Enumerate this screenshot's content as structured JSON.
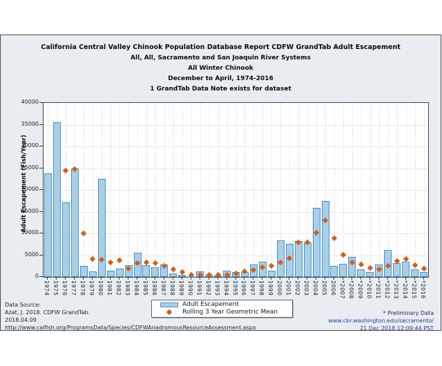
{
  "titles": {
    "line1": "California Central Valley Chinook Population Database Report CDFW GrandTab Adult Escapement",
    "line2": "All, All, Sacramento and San Joaquin River Systems",
    "line3": "All Winter Chinook",
    "line4": "December to April, 1974-2016",
    "line5": "1 GrandTab Data Note exists for dataset"
  },
  "chart_data": {
    "type": "bar",
    "title": "California Central Valley Chinook Population Database Report CDFW GrandTab Adult Escapement",
    "subtitle_lines": [
      "All, All, Sacramento and San Joaquin River Systems",
      "All Winter Chinook",
      "December to April, 1974-2016",
      "1 GrandTab Data Note exists for dataset"
    ],
    "xlabel": "",
    "ylabel": "Adult Escapement (Fish/Year)",
    "ylim": [
      0,
      40000
    ],
    "ytick_step": 5000,
    "grid": "dotted",
    "legend_position": "bottom-center",
    "categories": [
      "1974",
      "1975",
      "1976",
      "1977",
      "1978",
      "1979",
      "1980",
      "1981",
      "1982",
      "1983",
      "1984",
      "1985",
      "1986",
      "1987",
      "1988",
      "1989",
      "1990",
      "1991",
      "1992",
      "1993",
      "1994",
      "1995",
      "1996",
      "1997",
      "1998",
      "1999",
      "2000",
      "2001",
      "2002",
      "2003",
      "2004",
      "2005",
      "2006",
      "*2007",
      "*2008",
      "*2009",
      "*2010",
      "*2011",
      "*2012",
      "*2013",
      "*2014",
      "*2015",
      "*2016"
    ],
    "series": [
      {
        "name": "Adult Escapement",
        "type": "bar",
        "color": "#a9cfe7",
        "border_color": "#4291c8",
        "values": [
          23800,
          35500,
          17200,
          24900,
          2500,
          1200,
          22600,
          1400,
          1900,
          2700,
          5500,
          2700,
          2300,
          2900,
          800,
          500,
          200,
          1300,
          400,
          300,
          1400,
          1100,
          1100,
          2900,
          3500,
          1400,
          8350,
          7600,
          8250,
          7900,
          15900,
          17400,
          2550,
          3000,
          4600,
          1700,
          1100,
          2800,
          6200,
          3100,
          3550,
          1700,
          1100
        ]
      },
      {
        "name": "Rolling 3 Year Geometric Mean",
        "type": "scatter",
        "marker": "diamond",
        "color": "#d2601a",
        "values": [
          null,
          null,
          24400,
          24800,
          10000,
          4100,
          4000,
          3400,
          3800,
          1950,
          3100,
          3400,
          3200,
          2600,
          1750,
          1050,
          430,
          550,
          480,
          450,
          500,
          850,
          1200,
          1600,
          2200,
          2500,
          3350,
          4350,
          8000,
          7900,
          10100,
          13000,
          8900,
          5050,
          3300,
          2800,
          2000,
          1700,
          2550,
          3700,
          4050,
          2650,
          1850
        ]
      }
    ]
  },
  "legend": {
    "items": [
      {
        "label": "Adult Escapement",
        "swatch": "bar"
      },
      {
        "label": "Rolling 3 Year Geometric Mean",
        "swatch": "diamond"
      }
    ]
  },
  "footer": {
    "source_lines": [
      "Data Source:",
      "Azat, J. 2018. CDFW GrandTab.",
      "2018.04.09",
      "http://www.calfish.org/ProgramsData/Species/CDFWAnadromousResourceAssessment.aspx"
    ],
    "right": {
      "preliminary": "* Preliminary Data",
      "url": "www.cbr.washington.edu/sacramento/",
      "timestamp": "21 Dec 2018 12:09:44 PST"
    }
  },
  "colors": {
    "panel_background": "#e8edf1",
    "panel_border": "#45494e",
    "bar_fill": "#a9cfe7",
    "bar_border": "#4291c8",
    "marker": "#d2601a",
    "link_navy": "#313896"
  }
}
